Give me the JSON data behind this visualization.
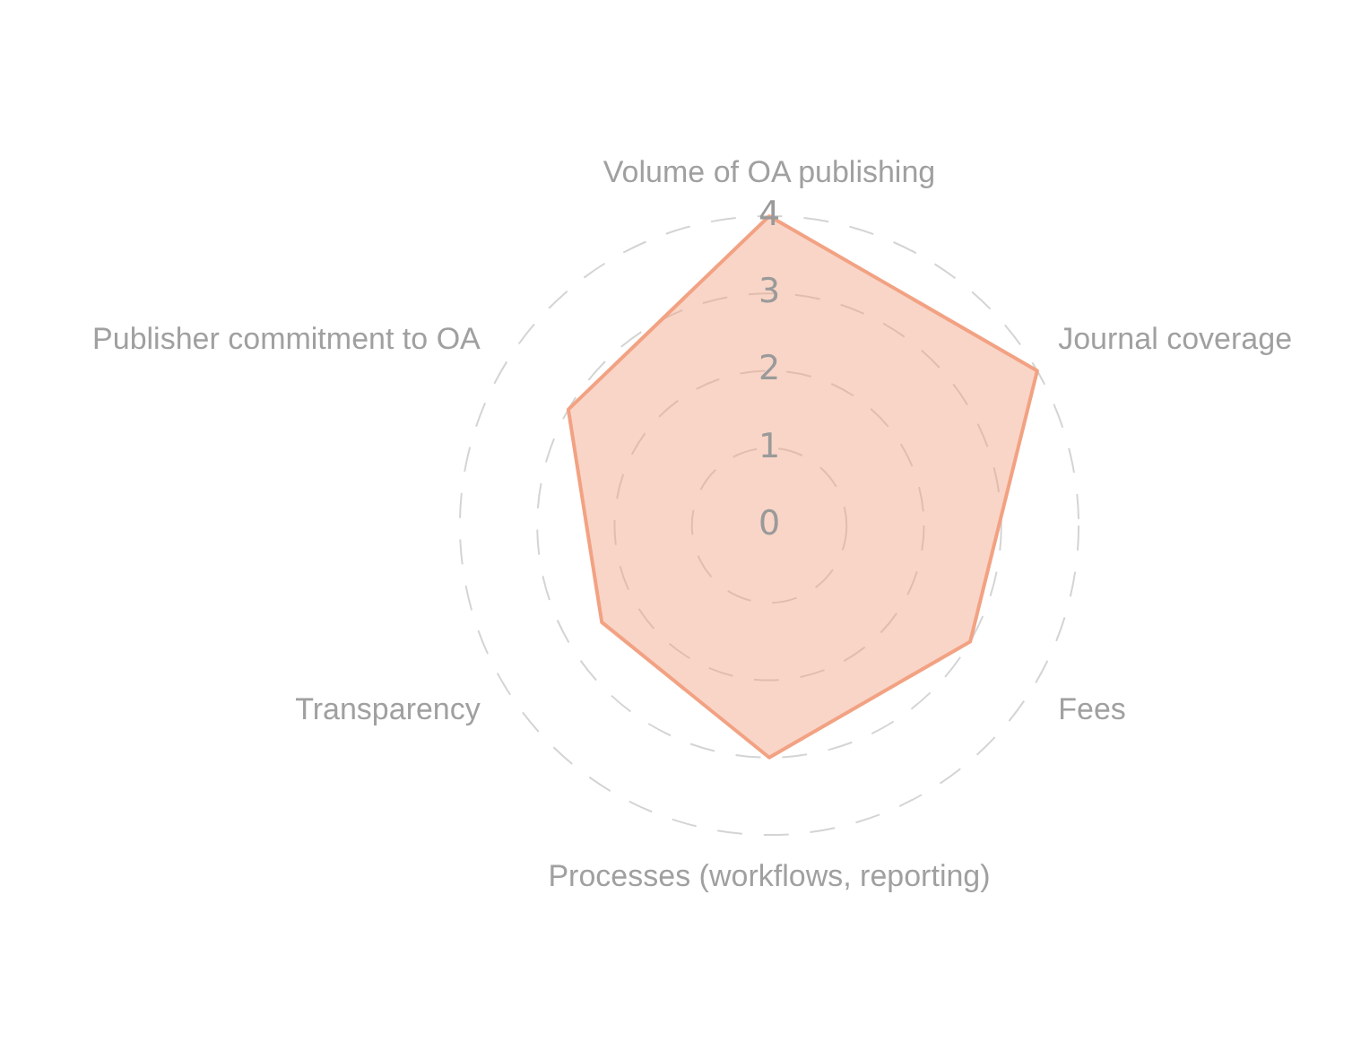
{
  "chart_data": {
    "type": "radar",
    "categories": [
      "Volume of OA publishing",
      "Journal coverage",
      "Fees",
      "Processes (workflows, reporting)",
      "Transparency",
      "Publisher commitment to OA"
    ],
    "series": [
      {
        "color": "#f2a283",
        "values": [
          4,
          4,
          3,
          3,
          2.5,
          3
        ]
      }
    ],
    "ylim": [
      0,
      4
    ],
    "yticks": [
      0,
      1,
      2,
      3,
      4
    ],
    "grid": true,
    "legend": false,
    "marker": "none"
  }
}
